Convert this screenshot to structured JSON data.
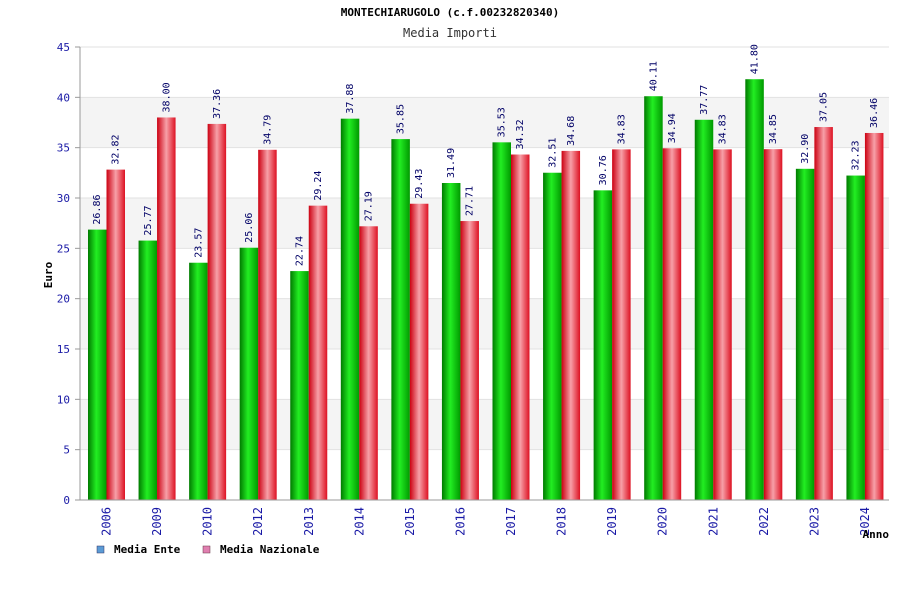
{
  "chart_data": {
    "type": "bar",
    "title": "MONTECHIARUGOLO (c.f.00232820340)",
    "subtitle": "Media Importi",
    "ylabel": "Euro",
    "xlabel": "Anno",
    "ylim": [
      0,
      45
    ],
    "yticks": [
      "0",
      "5",
      "10",
      "15",
      "20",
      "25",
      "30",
      "35",
      "40",
      "45"
    ],
    "grid": "horizontal",
    "legend_position": "bottom-left",
    "categories": [
      "2006",
      "2009",
      "2010",
      "2012",
      "2013",
      "2014",
      "2015",
      "2016",
      "2017",
      "2018",
      "2019",
      "2020",
      "2021",
      "2022",
      "2023",
      "2024"
    ],
    "series": [
      {
        "name": "Media Ente",
        "color": "#00cc00",
        "legend_color": "#5b9bd5",
        "values": [
          26.86,
          25.77,
          23.57,
          25.06,
          22.74,
          37.88,
          35.85,
          31.49,
          35.53,
          32.51,
          30.76,
          40.11,
          37.77,
          41.8,
          32.9,
          32.23
        ],
        "labels": [
          "26.86",
          "25.77",
          "23.57",
          "25.06",
          "22.74",
          "37.88",
          "35.85",
          "31.49",
          "35.53",
          "32.51",
          "30.76",
          "40.11",
          "37.77",
          "41.80",
          "32.90",
          "32.23"
        ]
      },
      {
        "name": "Media Nazionale",
        "color": "#ee2233",
        "legend_color": "#e07fb0",
        "values": [
          32.82,
          38.0,
          37.36,
          34.79,
          29.24,
          27.19,
          29.43,
          27.71,
          34.32,
          34.68,
          34.83,
          34.94,
          34.83,
          34.85,
          37.05,
          36.46
        ],
        "labels": [
          "32.82",
          "38.00",
          "37.36",
          "34.79",
          "29.24",
          "27.19",
          "29.43",
          "27.71",
          "34.32",
          "34.68",
          "34.83",
          "34.94",
          "34.83",
          "34.85",
          "37.05",
          "36.46"
        ]
      }
    ]
  }
}
